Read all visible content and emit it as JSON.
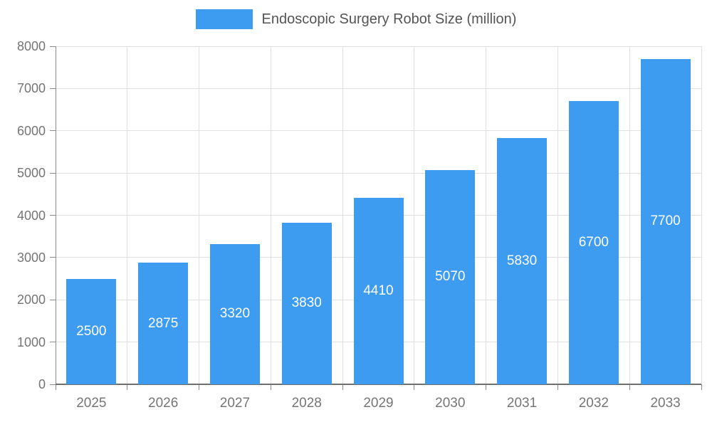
{
  "chart_data": {
    "type": "bar",
    "title": "Endoscopic Surgery Robot Size (million)",
    "categories": [
      "2025",
      "2026",
      "2027",
      "2028",
      "2029",
      "2030",
      "2031",
      "2032",
      "2033"
    ],
    "values": [
      2500,
      2875,
      3320,
      3830,
      4410,
      5070,
      5830,
      6700,
      7700
    ],
    "xlabel": "",
    "ylabel": "",
    "ylim": [
      0,
      8000
    ],
    "y_tick_step": 1000,
    "y_tick_labels": [
      "0",
      "1000",
      "2000",
      "3000",
      "4000",
      "5000",
      "6000",
      "7000",
      "8000"
    ],
    "grid": true,
    "legend_position": "top",
    "bar_color": "#3d9bf0",
    "label_color": "#ffffff",
    "axis_text_color": "#757575",
    "axis_line_color": "#8c8c8c",
    "grid_color": "#e0e0e0",
    "background_color": "#ffffff"
  }
}
